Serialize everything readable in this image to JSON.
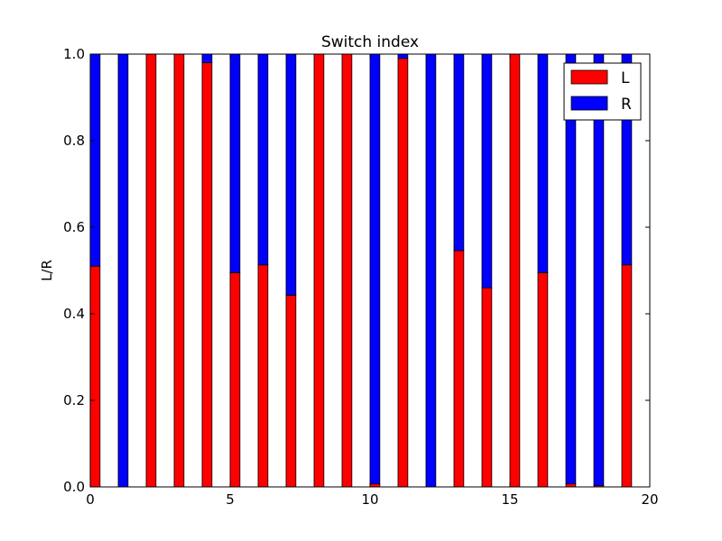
{
  "chart_data": {
    "type": "bar",
    "stacked": true,
    "title": "Switch index",
    "xlabel": "",
    "ylabel": "L/R",
    "xlim": [
      0,
      20
    ],
    "ylim": [
      0,
      1
    ],
    "xticks": [
      "0",
      "5",
      "10",
      "15",
      "20"
    ],
    "yticks": [
      "0.0",
      "0.2",
      "0.4",
      "0.6",
      "0.8",
      "1.0"
    ],
    "bar_width": 0.35,
    "x": [
      0,
      1,
      2,
      3,
      4,
      5,
      6,
      7,
      8,
      9,
      10,
      11,
      12,
      13,
      14,
      15,
      16,
      17,
      18,
      19
    ],
    "series": [
      {
        "name": "L",
        "color": "#ff0000",
        "values": [
          0.51,
          0.0,
          1.0,
          1.0,
          0.98,
          0.495,
          0.513,
          0.443,
          1.0,
          1.0,
          0.007,
          0.99,
          0.0,
          0.546,
          0.46,
          1.0,
          0.495,
          0.007,
          0.003,
          0.513
        ]
      },
      {
        "name": "R",
        "color": "#0000ff",
        "values": [
          0.49,
          1.0,
          0.0,
          0.0,
          0.02,
          0.505,
          0.487,
          0.557,
          0.0,
          0.0,
          0.993,
          0.01,
          1.0,
          0.454,
          0.54,
          0.0,
          0.505,
          0.993,
          0.997,
          0.487
        ]
      }
    ],
    "legend_position": "top-right",
    "grid": false
  }
}
